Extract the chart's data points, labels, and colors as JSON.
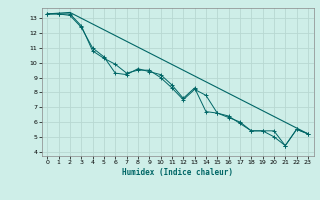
{
  "xlabel": "Humidex (Indice chaleur)",
  "ylabel": "",
  "bg_color": "#ceeee8",
  "grid_color": "#b8d8d2",
  "line_color": "#006666",
  "xlim": [
    -0.5,
    23.5
  ],
  "ylim": [
    3.7,
    13.7
  ],
  "yticks": [
    4,
    5,
    6,
    7,
    8,
    9,
    10,
    11,
    12,
    13
  ],
  "xticks": [
    0,
    1,
    2,
    3,
    4,
    5,
    6,
    7,
    8,
    9,
    10,
    11,
    12,
    13,
    14,
    15,
    16,
    17,
    18,
    19,
    20,
    21,
    22,
    23
  ],
  "series1_x": [
    0,
    1,
    2,
    3,
    4,
    5,
    6,
    7,
    8,
    9,
    10,
    11,
    12,
    13,
    14,
    15,
    16,
    17,
    18,
    19,
    20,
    21,
    22,
    23
  ],
  "series1_y": [
    13.3,
    13.3,
    13.2,
    12.4,
    11.0,
    10.4,
    9.3,
    9.2,
    9.6,
    9.4,
    9.2,
    8.5,
    7.6,
    8.3,
    6.7,
    6.6,
    6.3,
    6.0,
    5.4,
    5.4,
    5.0,
    4.4,
    5.5,
    5.2
  ],
  "series2_x": [
    0,
    1,
    2,
    3,
    4,
    5,
    6,
    7,
    8,
    9,
    10,
    11,
    12,
    13,
    14,
    15,
    16,
    17,
    18,
    19,
    20,
    21,
    22,
    23
  ],
  "series2_y": [
    13.3,
    13.3,
    13.3,
    12.5,
    10.8,
    10.3,
    9.9,
    9.3,
    9.5,
    9.5,
    9.0,
    8.3,
    7.5,
    8.2,
    7.8,
    6.6,
    6.4,
    5.9,
    5.4,
    5.4,
    5.4,
    4.4,
    5.5,
    5.2
  ],
  "series3_x": [
    0,
    2,
    23
  ],
  "series3_y": [
    13.3,
    13.4,
    5.2
  ]
}
